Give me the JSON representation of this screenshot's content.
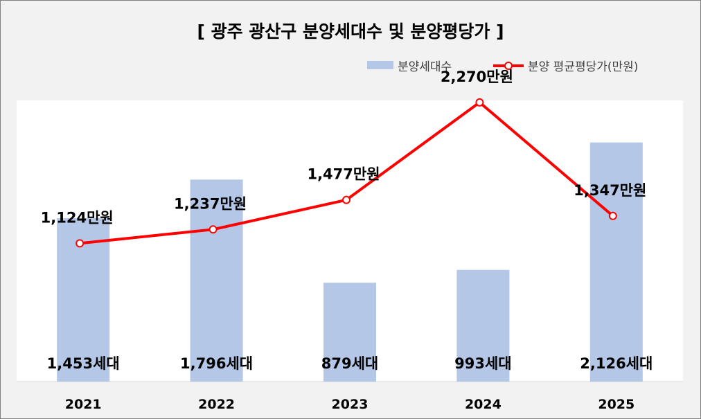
{
  "title": "[ 광주 광산구 분양세대수 및 분양평당가 ]",
  "legend": {
    "bar_label": "분양세대수",
    "line_label": "분양 평균평당가(만원)"
  },
  "colors": {
    "bar": "#b4c7e7",
    "line": "#ff0000",
    "plot_background": "#ffffff",
    "chart_background": "#f2f2f2"
  },
  "chart_data": {
    "type": "bar",
    "title": "[ 광주 광산구 분양세대수 및 분양평당가 ]",
    "categories": [
      "2021",
      "2022",
      "2023",
      "2024",
      "2025"
    ],
    "series": [
      {
        "name": "분양세대수",
        "type": "bar",
        "values": [
          1453,
          1796,
          879,
          993,
          2126
        ],
        "labels": [
          "1,453세대",
          "1,796세대",
          "879세대",
          "993세대",
          "2,126세대"
        ]
      },
      {
        "name": "분양 평균평당가(만원)",
        "type": "line",
        "values": [
          1124,
          1237,
          1477,
          2270,
          1347
        ],
        "labels": [
          "1,124만원",
          "1,237만원",
          "1,477만원",
          "2,270만원",
          "1,347만원"
        ]
      }
    ],
    "bar_axis_range": [
      0,
      2500
    ],
    "line_axis_range": [
      0,
      2500
    ],
    "grid": false,
    "legend_position": "top-right"
  }
}
